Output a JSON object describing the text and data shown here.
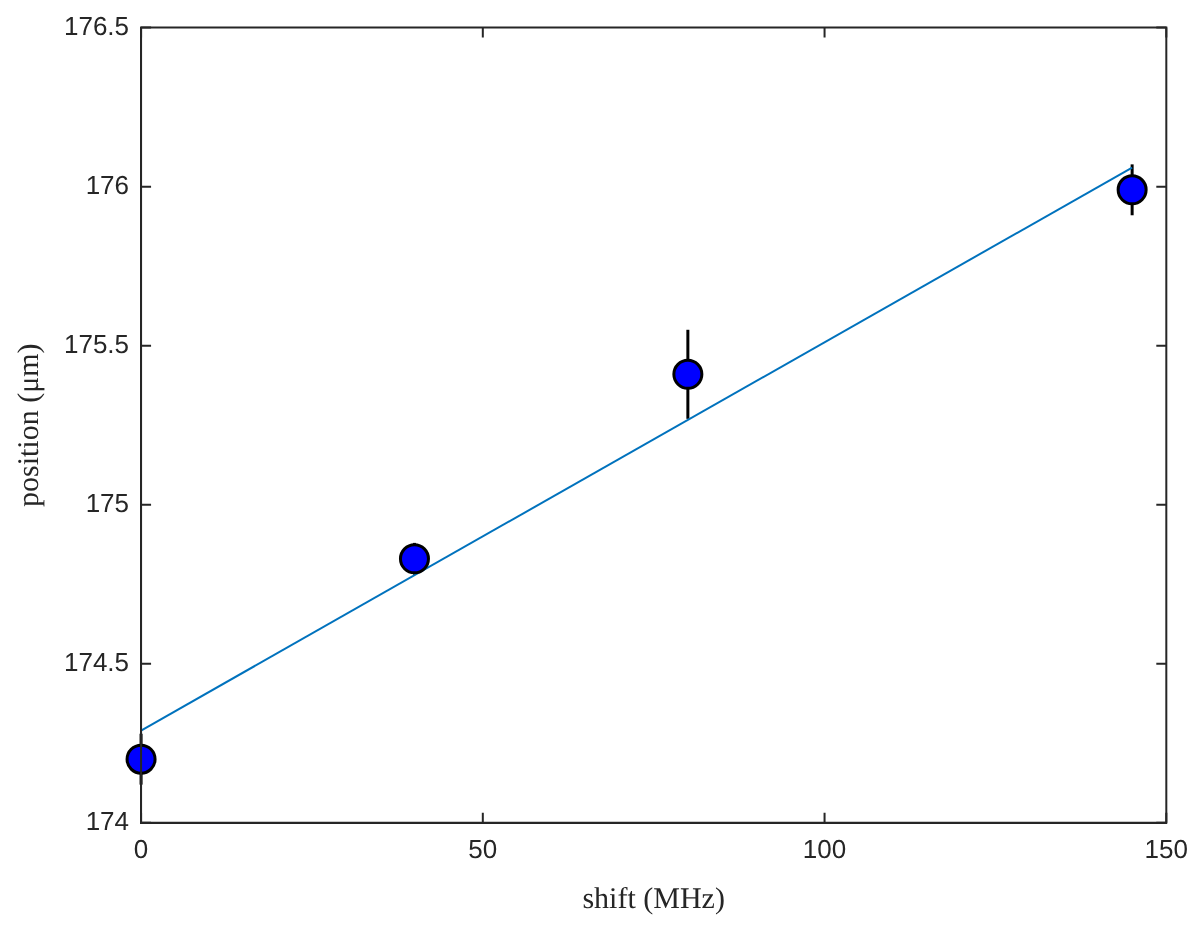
{
  "chart_data": {
    "type": "scatter",
    "xlabel": "shift (MHz)",
    "ylabel": "position (μm)",
    "xlim": [
      0,
      150
    ],
    "xticks": [
      0,
      50,
      100,
      150
    ],
    "ylim": [
      174,
      176.5
    ],
    "yticks": [
      174,
      174.5,
      175,
      175.5,
      176,
      176.5
    ],
    "grid": false,
    "legend": false,
    "marker": "circle",
    "series": [
      {
        "type": "line",
        "color": "#0072bd",
        "x": [
          0,
          145
        ],
        "values": [
          174.29,
          176.06
        ],
        "line_style": "solid",
        "marker": "none"
      },
      {
        "color": "#0000ff",
        "x": [
          0,
          40,
          80,
          145
        ],
        "values": [
          174.2,
          174.83,
          175.41,
          175.99
        ],
        "errors": [
          0.08,
          0.05,
          0.14,
          0.08
        ]
      }
    ]
  }
}
